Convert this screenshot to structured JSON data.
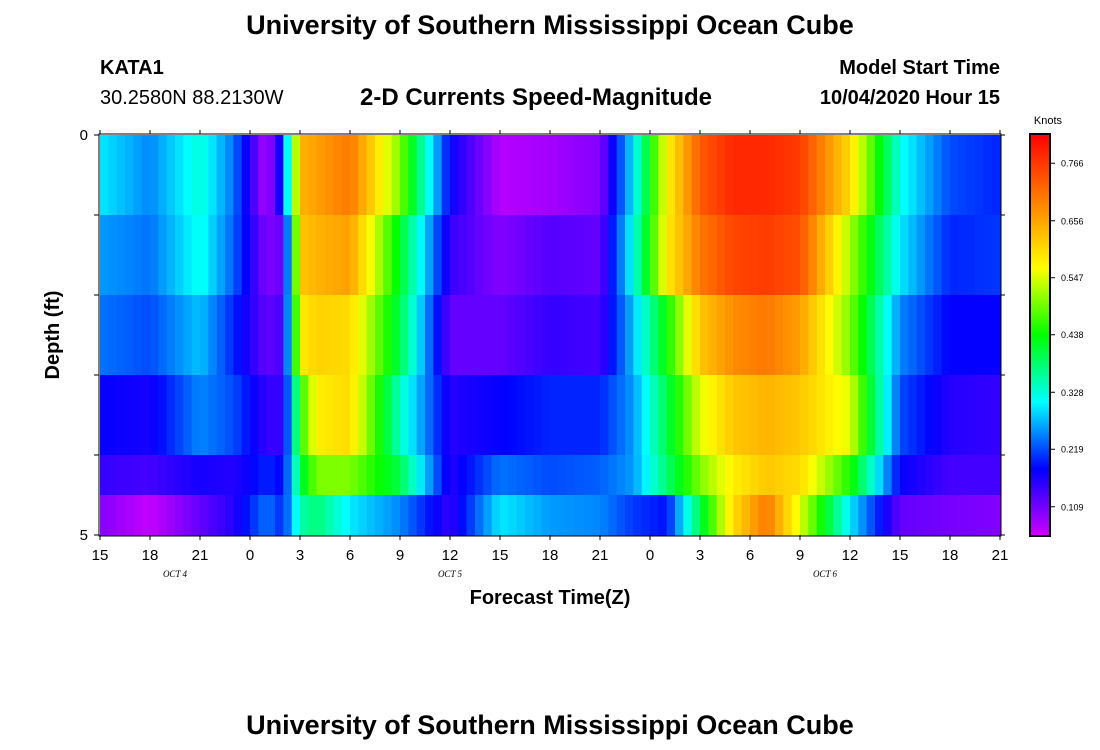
{
  "header": {
    "title": "University of Southern Mississippi Ocean Cube",
    "station": "KATA1",
    "coordinates": "30.2580N 88.2130W",
    "subtitle": "2-D Currents Speed-Magnitude",
    "model_start_label": "Model Start Time",
    "model_start_value": "10/04/2020 Hour 15"
  },
  "footer": {
    "title": "University of Southern Mississippi Ocean Cube"
  },
  "chart_data": {
    "type": "heatmap",
    "title": "2-D Currents Speed-Magnitude",
    "xlabel": "Forecast Time(Z)",
    "ylabel": "Depth (ft)",
    "x_range_hours": [
      0,
      54
    ],
    "y_range": [
      0,
      5
    ],
    "y_tick_labels": [
      {
        "value": 0,
        "label": "0"
      },
      {
        "value": 5,
        "label": "5"
      }
    ],
    "x_tick_labels": [
      "15",
      "18",
      "21",
      "0",
      "3",
      "6",
      "9",
      "12",
      "15",
      "18",
      "21",
      "0",
      "3",
      "6",
      "9",
      "12",
      "15",
      "18",
      "21"
    ],
    "date_labels": [
      {
        "at_hour": 4.5,
        "label": "OCT 4"
      },
      {
        "at_hour": 21,
        "label": "OCT 5"
      },
      {
        "at_hour": 43.5,
        "label": "OCT 6"
      }
    ],
    "colorbar": {
      "unit": "Knots",
      "vmin": 0.055,
      "vmax": 0.82,
      "tick_values": [
        "0.766",
        "0.656",
        "0.547",
        "0.438",
        "0.328",
        "0.219",
        "0.109"
      ],
      "colors": [
        "#cc00ff",
        "#0000ff",
        "#00ffff",
        "#00ff00",
        "#ffff00",
        "#ff7f00",
        "#ff0000"
      ]
    },
    "depth_levels": [
      "0-1",
      "1-2",
      "2-3",
      "3-4",
      "4-4.5",
      "4.5-5"
    ],
    "profile_hours": [
      0,
      3,
      6,
      8,
      10,
      11,
      12,
      13,
      15,
      18,
      21,
      24,
      27,
      30,
      32,
      34,
      36,
      38,
      40,
      42,
      45,
      48,
      51,
      54
    ],
    "profiles": [
      [
        0.3,
        0.26,
        0.24,
        0.18,
        0.15,
        0.1
      ],
      [
        0.25,
        0.24,
        0.22,
        0.17,
        0.14,
        0.06
      ],
      [
        0.33,
        0.32,
        0.28,
        0.25,
        0.17,
        0.12
      ],
      [
        0.24,
        0.23,
        0.2,
        0.22,
        0.16,
        0.16
      ],
      [
        0.07,
        0.1,
        0.12,
        0.15,
        0.2,
        0.24
      ],
      [
        0.2,
        0.12,
        0.14,
        0.15,
        0.18,
        0.2
      ],
      [
        0.64,
        0.62,
        0.58,
        0.45,
        0.4,
        0.35
      ],
      [
        0.66,
        0.64,
        0.61,
        0.58,
        0.5,
        0.38
      ],
      [
        0.7,
        0.66,
        0.6,
        0.6,
        0.5,
        0.3
      ],
      [
        0.5,
        0.42,
        0.4,
        0.34,
        0.4,
        0.25
      ],
      [
        0.18,
        0.15,
        0.12,
        0.16,
        0.16,
        0.15
      ],
      [
        0.07,
        0.1,
        0.12,
        0.18,
        0.24,
        0.3
      ],
      [
        0.08,
        0.13,
        0.15,
        0.2,
        0.22,
        0.26
      ],
      [
        0.1,
        0.12,
        0.14,
        0.2,
        0.23,
        0.25
      ],
      [
        0.3,
        0.32,
        0.28,
        0.26,
        0.26,
        0.21
      ],
      [
        0.57,
        0.58,
        0.44,
        0.4,
        0.38,
        0.19
      ],
      [
        0.73,
        0.7,
        0.62,
        0.55,
        0.5,
        0.4
      ],
      [
        0.78,
        0.75,
        0.68,
        0.62,
        0.58,
        0.6
      ],
      [
        0.78,
        0.76,
        0.7,
        0.64,
        0.62,
        0.7
      ],
      [
        0.76,
        0.74,
        0.66,
        0.62,
        0.6,
        0.55
      ],
      [
        0.6,
        0.52,
        0.5,
        0.55,
        0.45,
        0.3
      ],
      [
        0.32,
        0.3,
        0.25,
        0.22,
        0.18,
        0.12
      ],
      [
        0.22,
        0.2,
        0.18,
        0.16,
        0.14,
        0.11
      ],
      [
        0.2,
        0.21,
        0.18,
        0.15,
        0.14,
        0.1
      ]
    ]
  }
}
